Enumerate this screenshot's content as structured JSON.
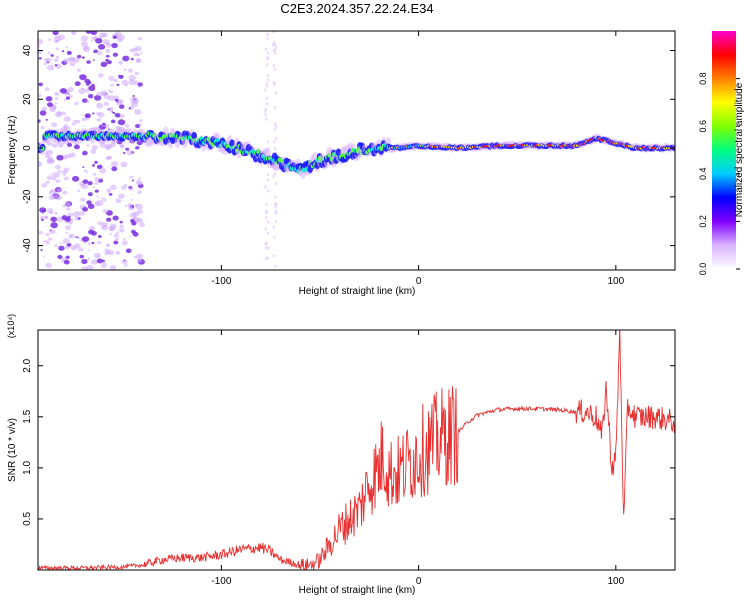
{
  "figure": {
    "title": "C2E3.2024.357.22.24.E34"
  },
  "chart_data": [
    {
      "type": "heatmap",
      "title": "C2E3.2024.357.22.24.E34",
      "xlabel": "Height of straight line (km)",
      "ylabel": "Frequency (Hz)",
      "xlim": [
        -193,
        130
      ],
      "ylim": [
        -50,
        48
      ],
      "xticks": [
        -100,
        0,
        100
      ],
      "yticks": [
        -40,
        -20,
        0,
        20,
        40
      ],
      "colorbar": {
        "label": "Normalized spectral amplitude",
        "range": [
          0.0,
          1.0
        ],
        "ticks": [
          "0.0",
          "0.2",
          "0.4",
          "0.6",
          "0.8"
        ],
        "colormap": [
          "#ffffff",
          "#d9b3ff",
          "#8000ff",
          "#0000ff",
          "#00ccff",
          "#00ff80",
          "#80ff00",
          "#ffff00",
          "#ff8000",
          "#ff0000",
          "#ff00cc"
        ]
      },
      "ridge": {
        "x": [
          -190,
          -160,
          -140,
          -120,
          -100,
          -80,
          -70,
          -60,
          -50,
          -40,
          -30,
          -20,
          -10,
          0,
          20,
          40,
          60,
          80,
          90,
          100,
          110,
          130
        ],
        "y": [
          5,
          5,
          5,
          4,
          2,
          -3,
          -6,
          -9,
          -5,
          -3,
          -1,
          0,
          0,
          1,
          0,
          1,
          1,
          1,
          4,
          2,
          0,
          0
        ]
      },
      "noise_region_x": [
        -193,
        -140
      ],
      "vertical_streaks_x": [
        -73,
        -77
      ]
    },
    {
      "type": "line",
      "title": "",
      "xlabel": "Height of straight line (km)",
      "ylabel": "SNR (10 * v/v)",
      "y_multiplier": "(x10⁴)",
      "xlim": [
        -193,
        130
      ],
      "ylim": [
        0,
        2.35
      ],
      "xticks": [
        -100,
        0,
        100
      ],
      "yticks": [
        0.5,
        1.0,
        1.5,
        2.0
      ],
      "ytick_labels": [
        "0.5",
        "1.0",
        "1.5",
        "2.0"
      ],
      "line_color": "#e83030",
      "series": [
        {
          "x": [
            -193,
            -170,
            -150,
            -140,
            -130,
            -120,
            -110,
            -100,
            -90,
            -80,
            -75,
            -70,
            -60,
            -55,
            -50,
            -45,
            -40,
            -30,
            -25,
            -20,
            -18,
            -15,
            -10,
            -5,
            0,
            5,
            10,
            15,
            20,
            25,
            30,
            40,
            50,
            60,
            70,
            80,
            85,
            90,
            93,
            95,
            98,
            100,
            102,
            104,
            106,
            110,
            120,
            130
          ],
          "y": [
            0.02,
            0.02,
            0.03,
            0.05,
            0.1,
            0.12,
            0.12,
            0.15,
            0.2,
            0.22,
            0.18,
            0.1,
            0.05,
            0.05,
            0.1,
            0.25,
            0.4,
            0.6,
            0.85,
            1.0,
            1.15,
            0.95,
            0.95,
            1.05,
            1.15,
            1.2,
            1.28,
            1.32,
            1.35,
            1.45,
            1.52,
            1.57,
            1.58,
            1.58,
            1.57,
            1.55,
            1.55,
            1.5,
            1.3,
            1.8,
            1.0,
            1.1,
            2.35,
            0.45,
            1.6,
            1.5,
            1.5,
            1.45
          ]
        }
      ]
    }
  ]
}
